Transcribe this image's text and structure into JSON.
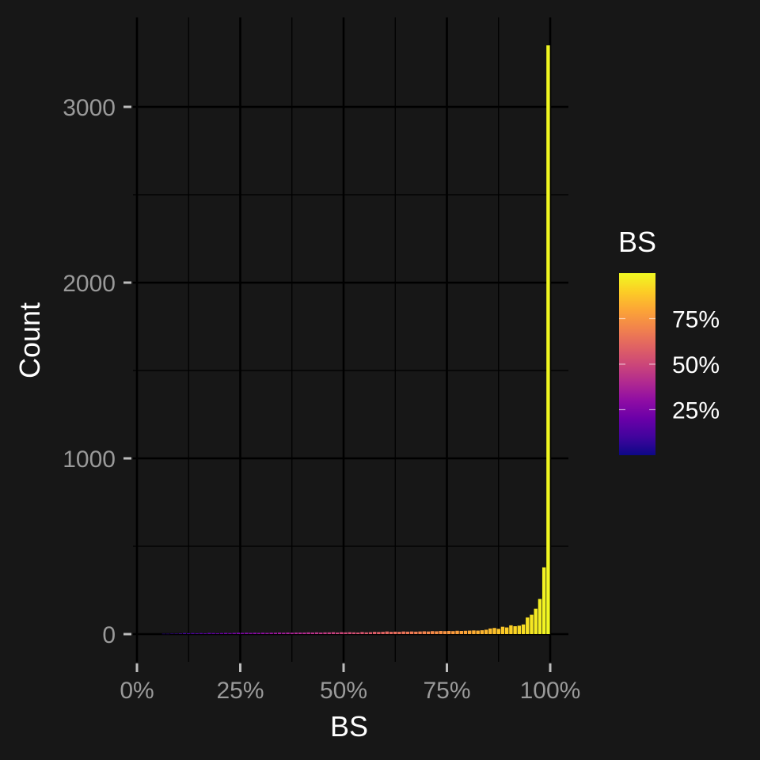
{
  "chart_data": {
    "type": "bar",
    "title": "",
    "xlabel": "BS",
    "ylabel": "Count",
    "xlim": [
      0,
      1
    ],
    "ylim": [
      0,
      3400
    ],
    "x_ticks": [
      {
        "value": 0,
        "label": "0%"
      },
      {
        "value": 0.25,
        "label": "25%"
      },
      {
        "value": 0.5,
        "label": "50%"
      },
      {
        "value": 0.75,
        "label": "75%"
      },
      {
        "value": 1,
        "label": "100%"
      }
    ],
    "y_ticks": [
      {
        "value": 0,
        "label": "0"
      },
      {
        "value": 1000,
        "label": "1000"
      },
      {
        "value": 2000,
        "label": "2000"
      },
      {
        "value": 3000,
        "label": "3000"
      }
    ],
    "grid": true,
    "bin_width": 0.01,
    "bins": [
      {
        "x": 0.065,
        "count": 2
      },
      {
        "x": 0.075,
        "count": 2
      },
      {
        "x": 0.085,
        "count": 3
      },
      {
        "x": 0.095,
        "count": 3
      },
      {
        "x": 0.105,
        "count": 4
      },
      {
        "x": 0.115,
        "count": 6
      },
      {
        "x": 0.125,
        "count": 5
      },
      {
        "x": 0.135,
        "count": 6
      },
      {
        "x": 0.145,
        "count": 5
      },
      {
        "x": 0.155,
        "count": 6
      },
      {
        "x": 0.165,
        "count": 5
      },
      {
        "x": 0.175,
        "count": 7
      },
      {
        "x": 0.185,
        "count": 6
      },
      {
        "x": 0.195,
        "count": 5
      },
      {
        "x": 0.205,
        "count": 6
      },
      {
        "x": 0.215,
        "count": 7
      },
      {
        "x": 0.225,
        "count": 6
      },
      {
        "x": 0.235,
        "count": 7
      },
      {
        "x": 0.245,
        "count": 8
      },
      {
        "x": 0.255,
        "count": 7
      },
      {
        "x": 0.265,
        "count": 8
      },
      {
        "x": 0.275,
        "count": 7
      },
      {
        "x": 0.285,
        "count": 8
      },
      {
        "x": 0.295,
        "count": 7
      },
      {
        "x": 0.305,
        "count": 8
      },
      {
        "x": 0.315,
        "count": 7
      },
      {
        "x": 0.325,
        "count": 8
      },
      {
        "x": 0.335,
        "count": 8
      },
      {
        "x": 0.345,
        "count": 9
      },
      {
        "x": 0.355,
        "count": 8
      },
      {
        "x": 0.365,
        "count": 9
      },
      {
        "x": 0.375,
        "count": 8
      },
      {
        "x": 0.385,
        "count": 9
      },
      {
        "x": 0.395,
        "count": 9
      },
      {
        "x": 0.405,
        "count": 9
      },
      {
        "x": 0.415,
        "count": 10
      },
      {
        "x": 0.425,
        "count": 9
      },
      {
        "x": 0.435,
        "count": 10
      },
      {
        "x": 0.445,
        "count": 9
      },
      {
        "x": 0.455,
        "count": 10
      },
      {
        "x": 0.465,
        "count": 10
      },
      {
        "x": 0.475,
        "count": 11
      },
      {
        "x": 0.485,
        "count": 9
      },
      {
        "x": 0.495,
        "count": 11
      },
      {
        "x": 0.505,
        "count": 10
      },
      {
        "x": 0.515,
        "count": 11
      },
      {
        "x": 0.525,
        "count": 10
      },
      {
        "x": 0.535,
        "count": 9
      },
      {
        "x": 0.545,
        "count": 12
      },
      {
        "x": 0.555,
        "count": 10
      },
      {
        "x": 0.565,
        "count": 11
      },
      {
        "x": 0.575,
        "count": 13
      },
      {
        "x": 0.585,
        "count": 12
      },
      {
        "x": 0.595,
        "count": 13
      },
      {
        "x": 0.605,
        "count": 15
      },
      {
        "x": 0.615,
        "count": 13
      },
      {
        "x": 0.625,
        "count": 14
      },
      {
        "x": 0.635,
        "count": 13
      },
      {
        "x": 0.645,
        "count": 15
      },
      {
        "x": 0.655,
        "count": 14
      },
      {
        "x": 0.665,
        "count": 15
      },
      {
        "x": 0.675,
        "count": 14
      },
      {
        "x": 0.685,
        "count": 15
      },
      {
        "x": 0.695,
        "count": 16
      },
      {
        "x": 0.705,
        "count": 15
      },
      {
        "x": 0.715,
        "count": 17
      },
      {
        "x": 0.725,
        "count": 16
      },
      {
        "x": 0.735,
        "count": 18
      },
      {
        "x": 0.745,
        "count": 17
      },
      {
        "x": 0.755,
        "count": 18
      },
      {
        "x": 0.765,
        "count": 17
      },
      {
        "x": 0.775,
        "count": 19
      },
      {
        "x": 0.785,
        "count": 18
      },
      {
        "x": 0.795,
        "count": 19
      },
      {
        "x": 0.805,
        "count": 20
      },
      {
        "x": 0.815,
        "count": 21
      },
      {
        "x": 0.825,
        "count": 20
      },
      {
        "x": 0.835,
        "count": 22
      },
      {
        "x": 0.845,
        "count": 25
      },
      {
        "x": 0.855,
        "count": 32
      },
      {
        "x": 0.865,
        "count": 35
      },
      {
        "x": 0.875,
        "count": 30
      },
      {
        "x": 0.885,
        "count": 42
      },
      {
        "x": 0.895,
        "count": 38
      },
      {
        "x": 0.905,
        "count": 50
      },
      {
        "x": 0.915,
        "count": 45
      },
      {
        "x": 0.925,
        "count": 48
      },
      {
        "x": 0.935,
        "count": 55
      },
      {
        "x": 0.945,
        "count": 95
      },
      {
        "x": 0.955,
        "count": 110
      },
      {
        "x": 0.965,
        "count": 145
      },
      {
        "x": 0.975,
        "count": 200
      },
      {
        "x": 0.985,
        "count": 380
      },
      {
        "x": 0.995,
        "count": 3350
      }
    ],
    "legend": {
      "title": "BS",
      "type": "colorbar",
      "placement": "right",
      "range": [
        0.0,
        1.0
      ],
      "labels": [
        {
          "value": 0.75,
          "label": "75%"
        },
        {
          "value": 0.5,
          "label": "50%"
        },
        {
          "value": 0.25,
          "label": "25%"
        }
      ],
      "palette": [
        "#0d0887",
        "#41049d",
        "#6a00a8",
        "#8f0da4",
        "#b12a90",
        "#cc4778",
        "#e16462",
        "#f2844b",
        "#fca636",
        "#fcce25",
        "#f0f921"
      ]
    },
    "colors": {
      "background": "#171717",
      "grid": "#000000",
      "tick_text": "#9a9a9a",
      "title_text": "#ffffff"
    }
  }
}
